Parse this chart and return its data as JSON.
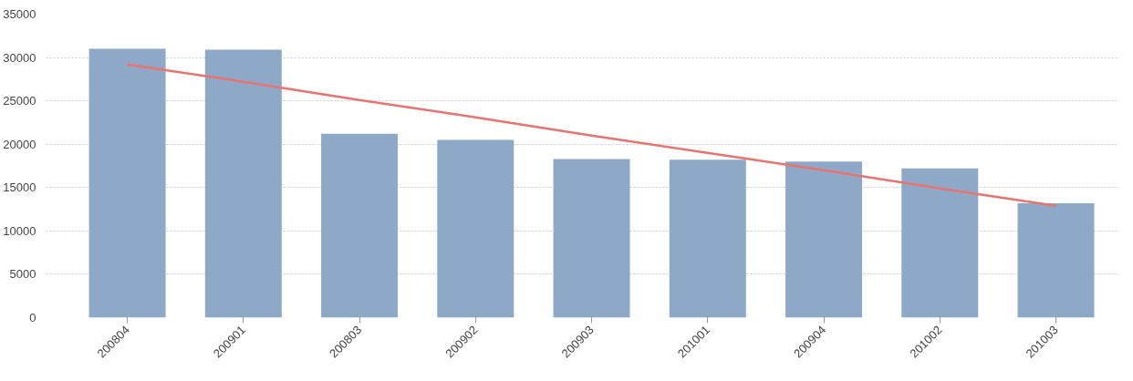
{
  "chart_data": {
    "type": "bar",
    "categories": [
      "200804",
      "200901",
      "200803",
      "200902",
      "200903",
      "201001",
      "200904",
      "201002",
      "201003"
    ],
    "series": [
      {
        "color": "#8ea9c8",
        "values": [
          31000,
          30900,
          21200,
          20500,
          18300,
          18200,
          18000,
          17200,
          13200
        ]
      },
      {
        "type": "line",
        "color": "#e8736f",
        "values": [
          29200,
          27200,
          25100,
          23100,
          21000,
          19000,
          17000,
          14900,
          12900
        ]
      }
    ],
    "ylim": [
      0,
      35000
    ],
    "yticks": [
      0,
      5000,
      10000,
      15000,
      20000,
      25000,
      30000,
      35000
    ],
    "grid": "y",
    "legend": false
  }
}
